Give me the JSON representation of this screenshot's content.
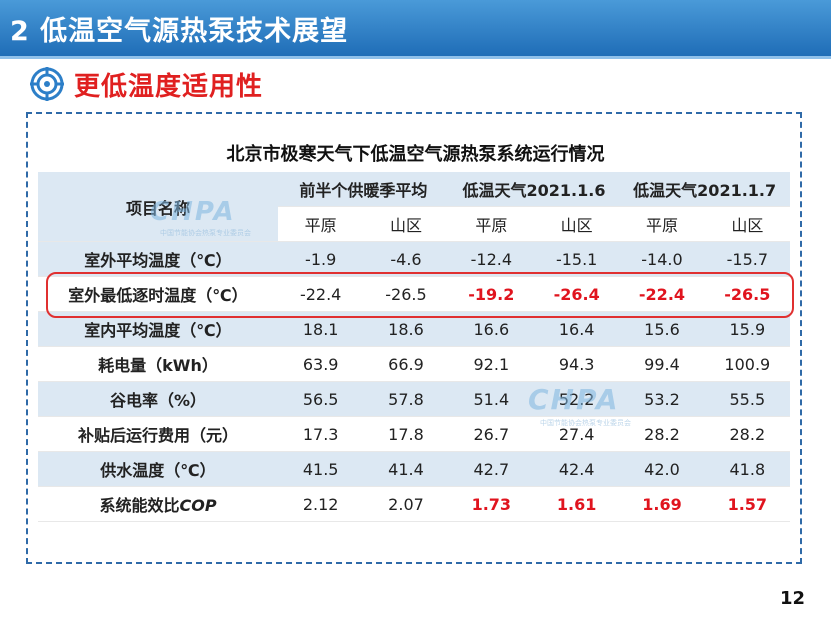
{
  "header": {
    "title": "2  低温空气源热泵技术展望"
  },
  "subheading": {
    "icon": "target-icon",
    "text": "更低温度适用性"
  },
  "table": {
    "title": "北京市极寒天气下低温空气源热泵系统运行情况",
    "item_header": "项目名称",
    "groups": [
      "前半个供暖季平均",
      "低温天气2021.1.6",
      "低温天气2021.1.7"
    ],
    "subheaders": [
      "平原",
      "山区",
      "平原",
      "山区",
      "平原",
      "山区"
    ],
    "rows": [
      {
        "label": "室外平均温度（℃）",
        "values": [
          "-1.9",
          "-4.6",
          "-12.4",
          "-15.1",
          "-14.0",
          "-15.7"
        ]
      },
      {
        "label": "室外最低逐时温度（℃）",
        "values": [
          "-22.4",
          "-26.5",
          "-19.2",
          "-26.4",
          "-22.4",
          "-26.5"
        ]
      },
      {
        "label": "室内平均温度（℃）",
        "values": [
          "18.1",
          "18.6",
          "16.6",
          "16.4",
          "15.6",
          "15.9"
        ]
      },
      {
        "label": "耗电量（kWh）",
        "values": [
          "63.9",
          "66.9",
          "92.1",
          "94.3",
          "99.4",
          "100.9"
        ]
      },
      {
        "label": "谷电率（%）",
        "values": [
          "56.5",
          "57.8",
          "51.4",
          "52.2",
          "53.2",
          "55.5"
        ]
      },
      {
        "label": "补贴后运行费用（元）",
        "values": [
          "17.3",
          "17.8",
          "26.7",
          "27.4",
          "28.2",
          "28.2"
        ]
      },
      {
        "label": "供水温度（℃）",
        "values": [
          "41.5",
          "41.4",
          "42.7",
          "42.4",
          "42.0",
          "41.8"
        ]
      },
      {
        "label_main": "系统能效比",
        "label_em": "COP",
        "values": [
          "2.12",
          "2.07",
          "1.73",
          "1.61",
          "1.69",
          "1.57"
        ]
      }
    ]
  },
  "watermark": {
    "text": "CHPA",
    "subtext": "中国节能协会热泵专业委员会"
  },
  "page_number": "12",
  "colors": {
    "header_bg": "#1f6db7",
    "accent_red": "#e0141e",
    "table_stripe": "#dce8f3"
  }
}
